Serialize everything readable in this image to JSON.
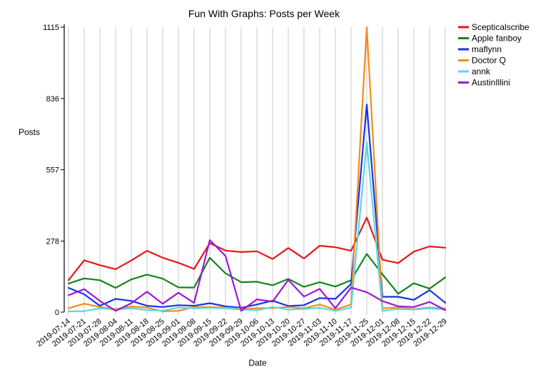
{
  "chart_data": {
    "type": "line",
    "title": "Fun With Graphs: Posts per Week",
    "xlabel": "Date",
    "ylabel": "Posts",
    "ylim": [
      0,
      1115
    ],
    "yticks": [
      0,
      278,
      557,
      836,
      1115
    ],
    "grid": "vertical",
    "legend_position": "top-right, outside plot",
    "categories": [
      "2019-07-14",
      "2019-07-21",
      "2019-07-28",
      "2019-08-04",
      "2019-08-11",
      "2019-08-18",
      "2019-08-25",
      "2019-09-01",
      "2019-09-08",
      "2019-09-15",
      "2019-09-22",
      "2019-09-29",
      "2019-10-06",
      "2019-10-13",
      "2019-10-20",
      "2019-10-27",
      "2019-11-03",
      "2019-11-10",
      "2019-11-17",
      "2019-11-25",
      "2019-12-01",
      "2019-12-08",
      "2019-12-15",
      "2019-12-22",
      "2019-12-29"
    ],
    "series": [
      {
        "name": "Scepticalscribe",
        "color": "#e8161b",
        "values": [
          125,
          203,
          184,
          168,
          202,
          240,
          213,
          193,
          169,
          270,
          241,
          235,
          238,
          208,
          251,
          210,
          260,
          254,
          240,
          370,
          205,
          192,
          237,
          257,
          252
        ]
      },
      {
        "name": "Apple fanboy",
        "color": "#14861c",
        "values": [
          112,
          132,
          125,
          95,
          128,
          147,
          131,
          97,
          96,
          213,
          152,
          117,
          119,
          105,
          130,
          99,
          117,
          100,
          125,
          228,
          148,
          72,
          113,
          92,
          136
        ]
      },
      {
        "name": "maflynn",
        "color": "#1434e8",
        "values": [
          95,
          70,
          25,
          52,
          44,
          25,
          20,
          27,
          25,
          35,
          23,
          17,
          30,
          45,
          24,
          27,
          55,
          52,
          110,
          812,
          60,
          60,
          48,
          86,
          37
        ]
      },
      {
        "name": "Doctor Q",
        "color": "#f58a1e",
        "values": [
          15,
          33,
          20,
          12,
          22,
          18,
          3,
          5,
          20,
          20,
          18,
          13,
          15,
          16,
          20,
          15,
          30,
          10,
          30,
          1115,
          15,
          18,
          12,
          18,
          14
        ]
      },
      {
        "name": "annk",
        "color": "#5ad8e0",
        "values": [
          3,
          4,
          15,
          10,
          15,
          8,
          6,
          18,
          15,
          17,
          15,
          10,
          7,
          20,
          10,
          12,
          17,
          5,
          18,
          665,
          5,
          12,
          10,
          15,
          10
        ]
      },
      {
        "name": "AustinIllini",
        "color": "#9e18d6",
        "values": [
          66,
          90,
          44,
          5,
          35,
          80,
          33,
          76,
          36,
          282,
          220,
          5,
          50,
          41,
          126,
          61,
          91,
          15,
          96,
          78,
          43,
          23,
          20,
          40,
          8
        ]
      }
    ]
  }
}
